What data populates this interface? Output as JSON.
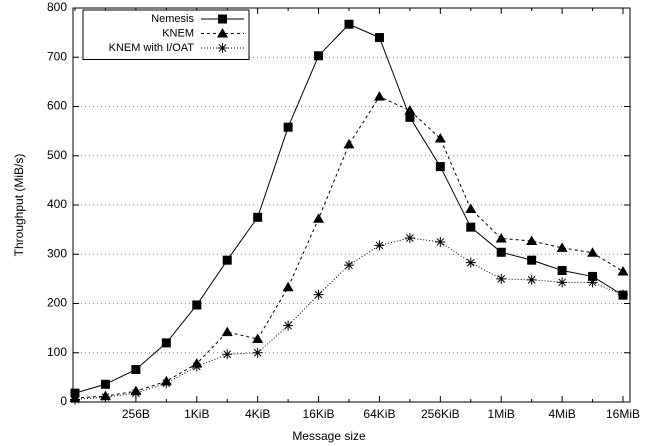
{
  "chart_data": {
    "type": "line",
    "xlabel": "Message size",
    "ylabel": "Throughput (MiB/s)",
    "categories": [
      null,
      null,
      "256B",
      null,
      "1KiB",
      null,
      "4KiB",
      null,
      "16KiB",
      null,
      "64KiB",
      null,
      "256KiB",
      null,
      "1MiB",
      null,
      "4MiB",
      null,
      "16MiB"
    ],
    "series": [
      {
        "name": "Nemesis",
        "color": "#000000",
        "marker": "square",
        "dash": "solid",
        "values": [
          18,
          36,
          66,
          120,
          197,
          288,
          375,
          558,
          703,
          767,
          740,
          578,
          478,
          355,
          304,
          288,
          267,
          255,
          217
        ]
      },
      {
        "name": "KNEM",
        "color": "#000000",
        "marker": "triangle",
        "dash": "dashed",
        "values": [
          8,
          12,
          22,
          42,
          78,
          142,
          128,
          233,
          372,
          523,
          620,
          592,
          535,
          392,
          332,
          327,
          313,
          303,
          265
        ]
      },
      {
        "name": "KNEM with I/OAT",
        "color": "#000000",
        "marker": "star",
        "dash": "dotted",
        "values": [
          5,
          10,
          18,
          38,
          72,
          97,
          100,
          155,
          218,
          278,
          318,
          333,
          325,
          283,
          250,
          248,
          243,
          243,
          218
        ]
      }
    ],
    "ylim": [
      0,
      800
    ],
    "yticks": [
      0,
      100,
      200,
      300,
      400,
      500,
      600,
      700,
      800
    ],
    "grid": true,
    "legend": "upper left"
  }
}
